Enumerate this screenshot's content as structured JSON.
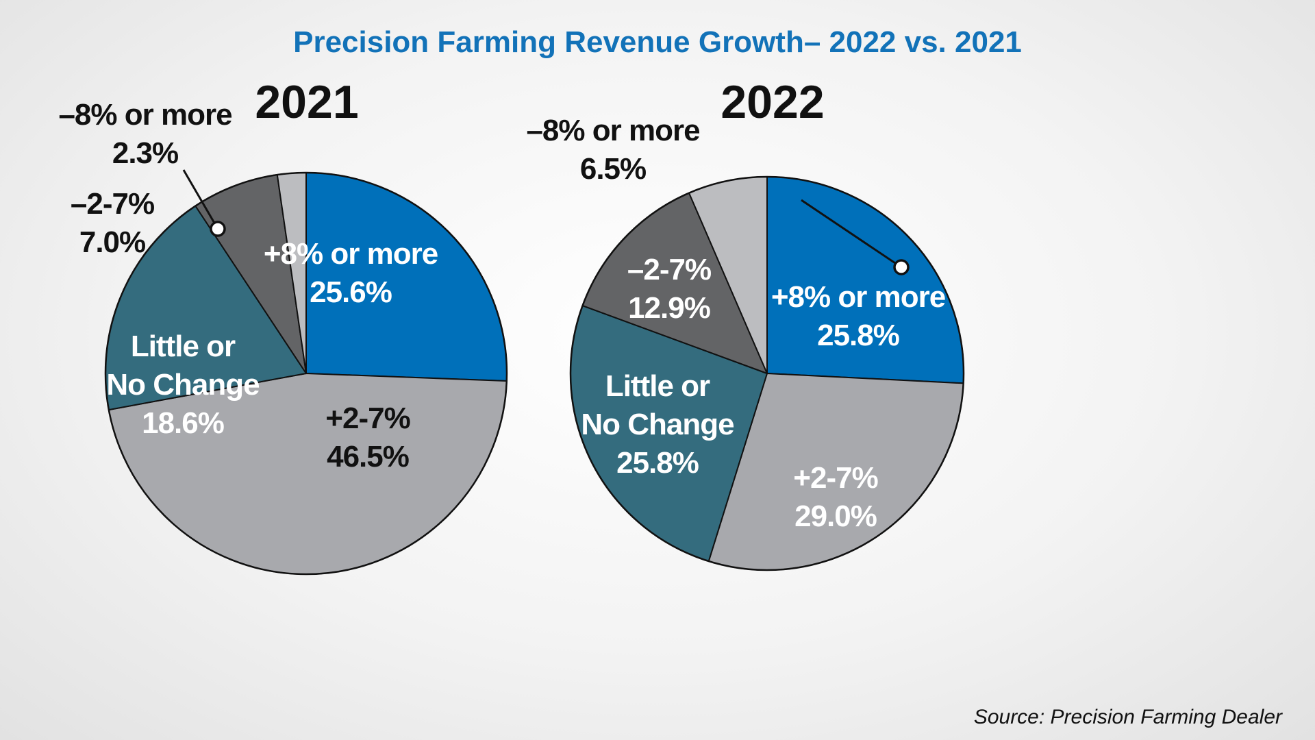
{
  "title": "Precision Farming Revenue Growth– 2022 vs. 2021",
  "source": "Source: Precision Farming Dealer",
  "colors": {
    "title": "#1272b8",
    "plus8": "#0070ba",
    "plus2_7": "#a8a9ad",
    "little_or_no_change": "#346c7e",
    "minus2_7": "#636466",
    "minus8": "#bcbdc0"
  },
  "chart_data": [
    {
      "type": "pie",
      "title": "2021",
      "slices": [
        {
          "category": "+8% or more",
          "value": 25.6,
          "label_lines": [
            "+8% or more",
            "25.6%"
          ],
          "color": "#0070ba",
          "text_color": "#ffffff"
        },
        {
          "category": "+2-7%",
          "value": 46.5,
          "label_lines": [
            "+2-7%",
            "46.5%"
          ],
          "color": "#a8a9ad",
          "text_color": "#111111"
        },
        {
          "category": "Little or No Change",
          "value": 18.6,
          "label_lines": [
            "Little or",
            "No Change",
            "18.6%"
          ],
          "color": "#346c7e",
          "text_color": "#ffffff"
        },
        {
          "category": "–2-7%",
          "value": 7.0,
          "label_lines": [
            "–2-7%",
            "7.0%"
          ],
          "color": "#636466",
          "text_color": "#111111"
        },
        {
          "category": "–8% or more",
          "value": 2.3,
          "label_lines": [
            "–8% or more",
            "2.3%"
          ],
          "color": "#bcbdc0",
          "text_color": "#111111"
        }
      ]
    },
    {
      "type": "pie",
      "title": "2022",
      "slices": [
        {
          "category": "+8% or more",
          "value": 25.8,
          "label_lines": [
            "+8% or more",
            "25.8%"
          ],
          "color": "#0070ba",
          "text_color": "#ffffff"
        },
        {
          "category": "+2-7%",
          "value": 29.0,
          "label_lines": [
            "+2-7%",
            "29.0%"
          ],
          "color": "#a8a9ad",
          "text_color": "#ffffff"
        },
        {
          "category": "Little or No Change",
          "value": 25.8,
          "label_lines": [
            "Little or",
            "No Change",
            "25.8%"
          ],
          "color": "#346c7e",
          "text_color": "#ffffff"
        },
        {
          "category": "–2-7%",
          "value": 12.9,
          "label_lines": [
            "–2-7%",
            "12.9%"
          ],
          "color": "#636466",
          "text_color": "#ffffff"
        },
        {
          "category": "–8% or more",
          "value": 6.5,
          "label_lines": [
            "–8% or more",
            "6.5%"
          ],
          "color": "#bcbdc0",
          "text_color": "#111111"
        }
      ]
    }
  ]
}
